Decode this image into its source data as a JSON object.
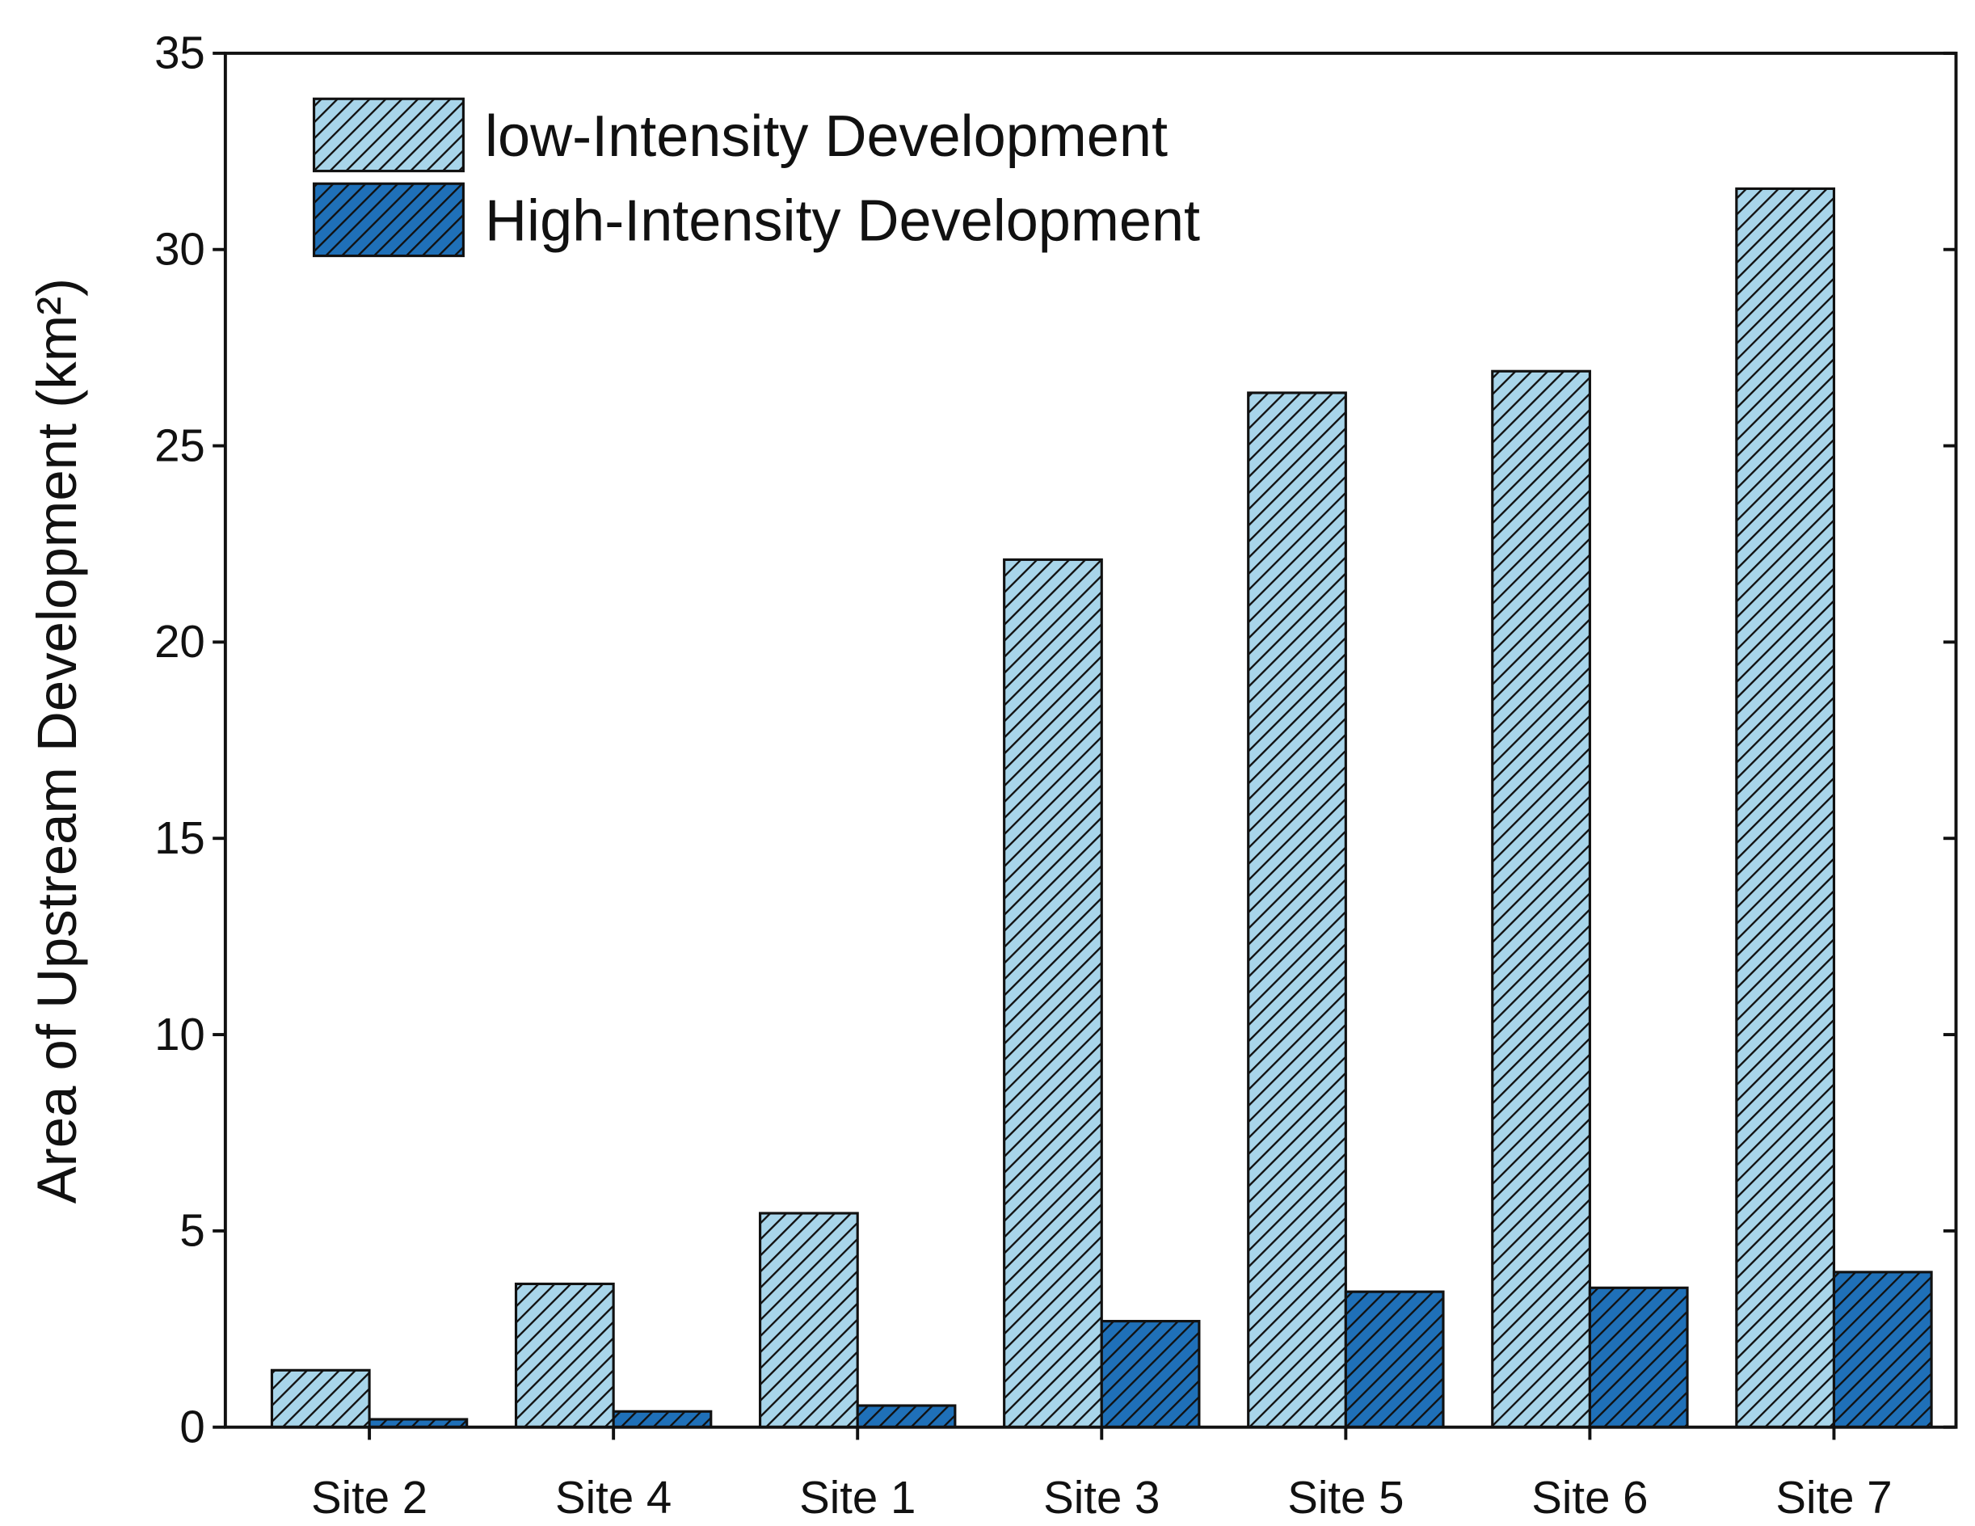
{
  "chart_data": {
    "type": "bar",
    "ylabel": "Area of Upstream Development (km²)",
    "categories": [
      "Site 2",
      "Site 4",
      "Site 1",
      "Site 3",
      "Site 5",
      "Site 6",
      "Site 7"
    ],
    "series": [
      {
        "name": "low-Intensity Development",
        "color": "#a8d5ea",
        "values": [
          1.45,
          3.65,
          5.45,
          22.1,
          26.35,
          26.9,
          31.55
        ]
      },
      {
        "name": "High-Intensity Development",
        "color": "#1f70b8",
        "values": [
          0.2,
          0.4,
          0.55,
          2.7,
          3.45,
          3.55,
          3.95
        ]
      }
    ],
    "ylim": [
      0,
      35
    ],
    "yticks": [
      0,
      5,
      10,
      15,
      20,
      25,
      30,
      35
    ],
    "hatch": true,
    "legend": "upper-left"
  }
}
